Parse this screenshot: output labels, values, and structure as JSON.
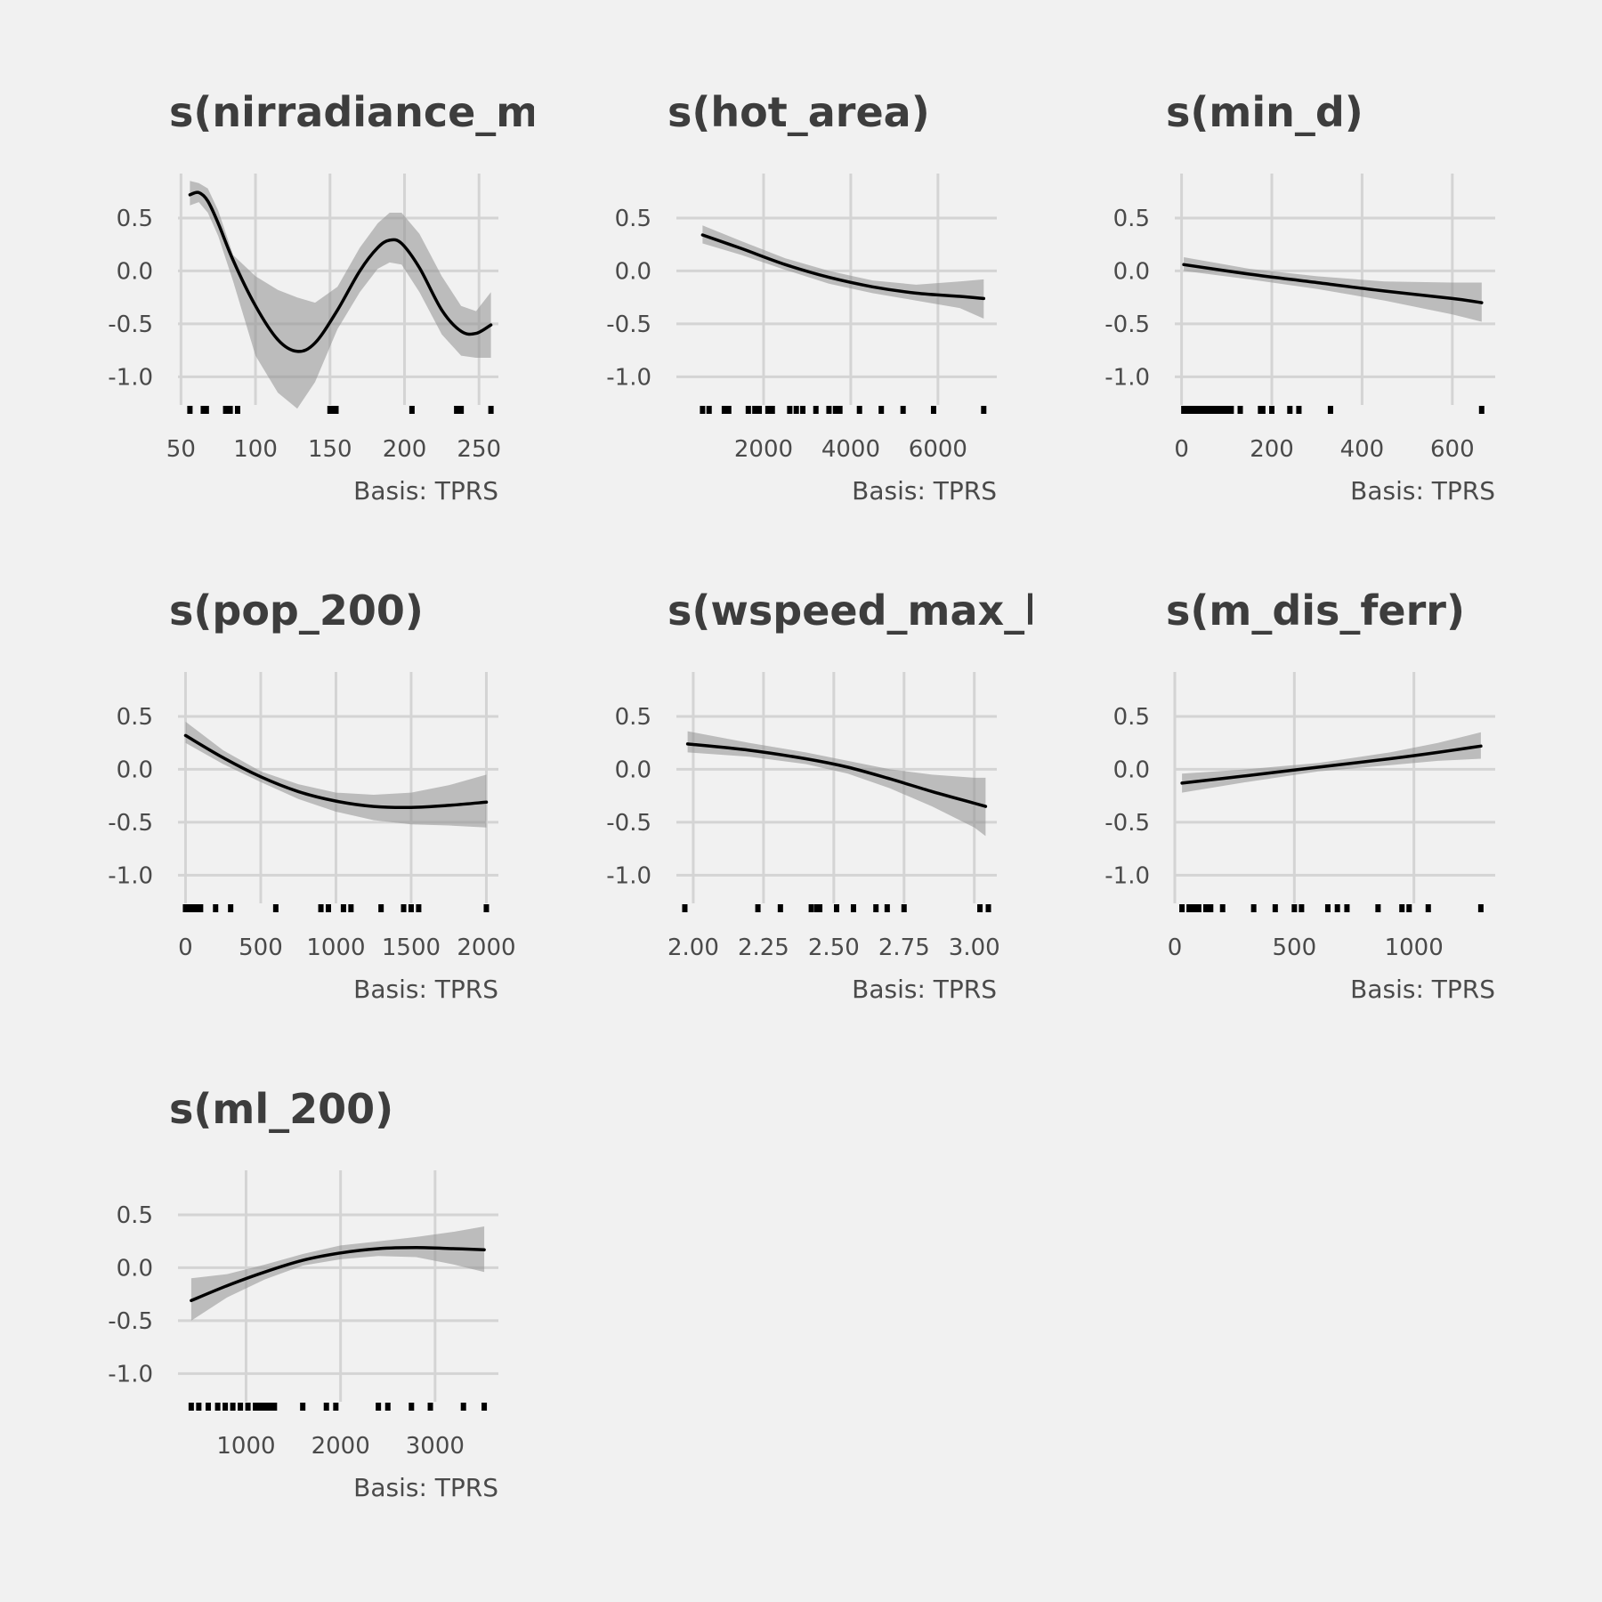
{
  "colors": {
    "background": "#f1f1f1",
    "grid": "#d4d4d4",
    "band": "#8f8f8f",
    "curve": "#000000",
    "rug": "#000000",
    "text": "#3d3d3d"
  },
  "chart_data": [
    {
      "type": "line",
      "title": "s(nirradiance_max)",
      "caption": "Basis: TPRS",
      "xlim": [
        48,
        263
      ],
      "ylim": [
        -1.35,
        0.92
      ],
      "x_ticks": [
        50,
        100,
        150,
        200,
        250
      ],
      "x_tick_labels": [
        "50",
        "100",
        "150",
        "200",
        "250"
      ],
      "y_ticks": [
        0.5,
        0.0,
        -0.5,
        -1.0
      ],
      "y_tick_labels": [
        "0.5",
        "0.0",
        "-0.5",
        "-1.0"
      ],
      "x": [
        56,
        62,
        68,
        75,
        85,
        100,
        115,
        128,
        140,
        155,
        170,
        182,
        190,
        198,
        210,
        225,
        238,
        248,
        258
      ],
      "estimate": [
        0.72,
        0.74,
        0.66,
        0.45,
        0.1,
        -0.33,
        -0.65,
        -0.76,
        -0.68,
        -0.37,
        0.0,
        0.22,
        0.29,
        0.26,
        0.03,
        -0.37,
        -0.57,
        -0.59,
        -0.51
      ],
      "lower": [
        0.62,
        0.65,
        0.55,
        0.33,
        -0.1,
        -0.8,
        -1.15,
        -1.3,
        -1.05,
        -0.55,
        -0.2,
        0.02,
        0.08,
        0.06,
        -0.2,
        -0.6,
        -0.8,
        -0.82,
        -0.82
      ],
      "upper": [
        0.85,
        0.83,
        0.78,
        0.57,
        0.15,
        -0.05,
        -0.18,
        -0.25,
        -0.3,
        -0.15,
        0.22,
        0.45,
        0.55,
        0.55,
        0.35,
        -0.05,
        -0.33,
        -0.38,
        -0.2
      ],
      "rug": [
        56,
        65,
        67,
        80,
        83,
        88,
        150,
        152,
        154,
        205,
        235,
        238,
        258
      ]
    },
    {
      "type": "line",
      "title": "s(hot_area)",
      "caption": "Basis: TPRS",
      "xlim": [
        0,
        7350
      ],
      "ylim": [
        -1.35,
        0.92
      ],
      "x_ticks": [
        2000,
        4000,
        6000
      ],
      "x_tick_labels": [
        "2000",
        "4000",
        "6000"
      ],
      "y_ticks": [
        0.5,
        0.0,
        -0.5,
        -1.0
      ],
      "y_tick_labels": [
        "0.5",
        "0.0",
        "-0.5",
        "-1.0"
      ],
      "x": [
        600,
        1500,
        2500,
        3500,
        4500,
        5500,
        6500,
        7050
      ],
      "estimate": [
        0.34,
        0.21,
        0.06,
        -0.06,
        -0.15,
        -0.21,
        -0.24,
        -0.26
      ],
      "lower": [
        0.26,
        0.15,
        0.01,
        -0.12,
        -0.21,
        -0.28,
        -0.35,
        -0.45
      ],
      "upper": [
        0.43,
        0.28,
        0.12,
        0.0,
        -0.09,
        -0.13,
        -0.1,
        -0.08
      ],
      "rug": [
        600,
        750,
        1100,
        1200,
        1650,
        1800,
        1900,
        2100,
        2200,
        2600,
        2750,
        2900,
        3200,
        3500,
        3650,
        3750,
        4200,
        4700,
        5200,
        5900,
        7050
      ]
    },
    {
      "type": "line",
      "title": "s(min_d)",
      "caption": "Basis: TPRS",
      "xlim": [
        -15,
        695
      ],
      "ylim": [
        -1.35,
        0.92
      ],
      "x_ticks": [
        0,
        200,
        400,
        600
      ],
      "x_tick_labels": [
        "0",
        "200",
        "400",
        "600"
      ],
      "y_ticks": [
        0.5,
        0.0,
        -0.5,
        -1.0
      ],
      "y_tick_labels": [
        "0.5",
        "0.0",
        "-0.5",
        "-1.0"
      ],
      "x": [
        5,
        150,
        300,
        450,
        600,
        665
      ],
      "estimate": [
        0.06,
        -0.03,
        -0.11,
        -0.19,
        -0.26,
        -0.3
      ],
      "lower": [
        0.0,
        -0.08,
        -0.17,
        -0.28,
        -0.41,
        -0.48
      ],
      "upper": [
        0.13,
        0.02,
        -0.05,
        -0.1,
        -0.11,
        -0.11
      ],
      "rug": [
        5,
        10,
        15,
        20,
        25,
        30,
        35,
        40,
        45,
        55,
        60,
        65,
        70,
        75,
        80,
        90,
        100,
        110,
        130,
        175,
        180,
        200,
        240,
        260,
        330,
        665
      ]
    },
    {
      "type": "line",
      "title": "s(pop_200)",
      "caption": "Basis: TPRS",
      "xlim": [
        -50,
        2080
      ],
      "ylim": [
        -1.35,
        0.92
      ],
      "x_ticks": [
        0,
        500,
        1000,
        1500,
        2000
      ],
      "x_tick_labels": [
        "0",
        "500",
        "1000",
        "1500",
        "2000"
      ],
      "y_ticks": [
        0.5,
        0.0,
        -0.5,
        -1.0
      ],
      "y_tick_labels": [
        "0.5",
        "0.0",
        "-0.5",
        "-1.0"
      ],
      "x": [
        0,
        250,
        500,
        750,
        1000,
        1250,
        1500,
        1750,
        2000
      ],
      "estimate": [
        0.32,
        0.11,
        -0.07,
        -0.21,
        -0.3,
        -0.35,
        -0.36,
        -0.34,
        -0.31
      ],
      "lower": [
        0.25,
        0.05,
        -0.12,
        -0.28,
        -0.4,
        -0.48,
        -0.52,
        -0.53,
        -0.55
      ],
      "upper": [
        0.45,
        0.18,
        -0.02,
        -0.14,
        -0.22,
        -0.24,
        -0.22,
        -0.15,
        -0.05
      ],
      "rug": [
        0,
        10,
        20,
        30,
        50,
        70,
        100,
        200,
        300,
        600,
        900,
        950,
        1050,
        1100,
        1300,
        1450,
        1500,
        1550,
        2000
      ]
    },
    {
      "type": "line",
      "title": "s(wspeed_max_hour)",
      "caption": "Basis: TPRS",
      "xlim": [
        1.94,
        3.08
      ],
      "ylim": [
        -1.35,
        0.92
      ],
      "x_ticks": [
        2.0,
        2.25,
        2.5,
        2.75,
        3.0
      ],
      "x_tick_labels": [
        "2.00",
        "2.25",
        "2.50",
        "2.75",
        "3.00"
      ],
      "y_ticks": [
        0.5,
        0.0,
        -0.5,
        -1.0
      ],
      "y_tick_labels": [
        "0.5",
        "0.0",
        "-0.5",
        "-1.0"
      ],
      "x": [
        1.98,
        2.2,
        2.4,
        2.55,
        2.7,
        2.85,
        3.0,
        3.04
      ],
      "estimate": [
        0.24,
        0.18,
        0.1,
        0.02,
        -0.09,
        -0.21,
        -0.32,
        -0.35
      ],
      "lower": [
        0.16,
        0.12,
        0.05,
        -0.04,
        -0.18,
        -0.35,
        -0.55,
        -0.63
      ],
      "upper": [
        0.36,
        0.25,
        0.16,
        0.08,
        0.0,
        -0.05,
        -0.08,
        -0.08
      ],
      "rug": [
        1.97,
        2.23,
        2.31,
        2.42,
        2.44,
        2.45,
        2.51,
        2.57,
        2.65,
        2.69,
        2.75,
        3.02,
        3.05
      ]
    },
    {
      "type": "line",
      "title": "s(m_dis_ferr)",
      "caption": "Basis: TPRS",
      "xlim": [
        0,
        1340
      ],
      "ylim": [
        -1.35,
        0.92
      ],
      "x_ticks": [
        0,
        500,
        1000
      ],
      "x_tick_labels": [
        "0",
        "500",
        "1000"
      ],
      "y_ticks": [
        0.5,
        0.0,
        -0.5,
        -1.0
      ],
      "y_tick_labels": [
        "0.5",
        "0.0",
        "-0.5",
        "-1.0"
      ],
      "x": [
        30,
        300,
        600,
        900,
        1100,
        1280
      ],
      "estimate": [
        -0.13,
        -0.06,
        0.02,
        0.1,
        0.16,
        0.22
      ],
      "lower": [
        -0.22,
        -0.12,
        -0.02,
        0.04,
        0.08,
        0.1
      ],
      "upper": [
        -0.04,
        0.0,
        0.06,
        0.16,
        0.25,
        0.35
      ],
      "rug": [
        30,
        60,
        80,
        100,
        130,
        150,
        200,
        330,
        420,
        500,
        530,
        640,
        680,
        720,
        850,
        950,
        980,
        1060,
        1280
      ]
    },
    {
      "type": "line",
      "title": "s(ml_200)",
      "caption": "Basis: TPRS",
      "xlim": [
        280,
        3670
      ],
      "ylim": [
        -1.35,
        0.92
      ],
      "x_ticks": [
        1000,
        2000,
        3000
      ],
      "x_tick_labels": [
        "1000",
        "2000",
        "3000"
      ],
      "y_ticks": [
        0.5,
        0.0,
        -0.5,
        -1.0
      ],
      "y_tick_labels": [
        "0.5",
        "0.0",
        "-0.5",
        "-1.0"
      ],
      "x": [
        420,
        800,
        1200,
        1600,
        2000,
        2400,
        2800,
        3200,
        3520
      ],
      "estimate": [
        -0.31,
        -0.17,
        -0.04,
        0.07,
        0.14,
        0.18,
        0.19,
        0.18,
        0.17
      ],
      "lower": [
        -0.5,
        -0.28,
        -0.11,
        0.02,
        0.08,
        0.11,
        0.1,
        0.03,
        -0.04
      ],
      "upper": [
        -0.1,
        -0.06,
        0.03,
        0.13,
        0.21,
        0.25,
        0.29,
        0.34,
        0.39
      ],
      "rug": [
        420,
        500,
        600,
        700,
        780,
        860,
        940,
        1020,
        1100,
        1150,
        1200,
        1250,
        1300,
        1600,
        1850,
        1950,
        2400,
        2500,
        2750,
        2950,
        3300,
        3520
      ]
    }
  ]
}
